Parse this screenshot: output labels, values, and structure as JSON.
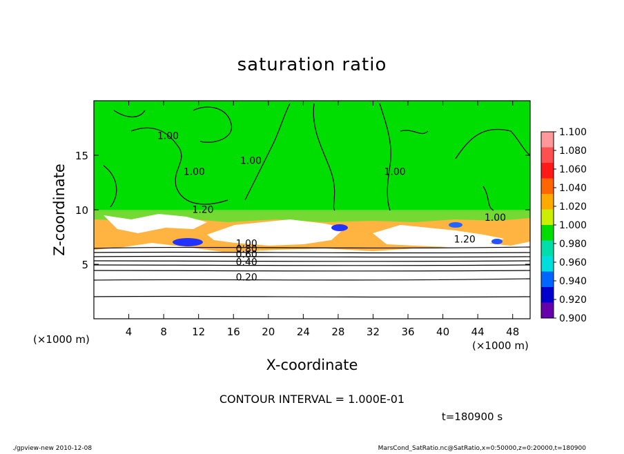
{
  "chart_data": {
    "type": "heatmap",
    "title": "saturation ratio",
    "xlabel": "X-coordinate",
    "ylabel": "Z-coordinate",
    "x_unit_left": "(×1000 m)",
    "x_unit_right": "(×1000 m)",
    "xlim": [
      0,
      50
    ],
    "ylim": [
      0,
      20
    ],
    "xticks": [
      4,
      8,
      12,
      16,
      20,
      24,
      28,
      32,
      36,
      40,
      44,
      48
    ],
    "yticks": [
      5,
      10,
      15
    ],
    "colorbar": {
      "levels": [
        "1.100",
        "1.080",
        "1.060",
        "1.040",
        "1.020",
        "1.000",
        "0.980",
        "0.960",
        "0.940",
        "0.920",
        "0.900"
      ],
      "colors": [
        "#ff9999",
        "#ff5050",
        "#ff1a1a",
        "#ff6600",
        "#ffaa00",
        "#ccee00",
        "#00dd00",
        "#00ddaa",
        "#00dddd",
        "#0066ff",
        "#0000cc",
        "#6600aa"
      ]
    },
    "contour_labels": [
      {
        "text": "1.00",
        "x": 8.5,
        "z": 16.5
      },
      {
        "text": "1.00",
        "x": 11.5,
        "z": 13.2
      },
      {
        "text": "1.00",
        "x": 18.0,
        "z": 14.2
      },
      {
        "text": "1.00",
        "x": 34.5,
        "z": 13.2
      },
      {
        "text": "1.00",
        "x": 46.0,
        "z": 9.0
      },
      {
        "text": "1.20",
        "x": 12.5,
        "z": 9.7
      },
      {
        "text": "1.20",
        "x": 42.5,
        "z": 7.0
      },
      {
        "text": "1.00",
        "x": 17.5,
        "z": 6.6
      },
      {
        "text": "0.80",
        "x": 17.5,
        "z": 6.1
      },
      {
        "text": "0.60",
        "x": 17.5,
        "z": 5.6
      },
      {
        "text": "0.40",
        "x": 17.5,
        "z": 4.9
      },
      {
        "text": "0.20",
        "x": 17.5,
        "z": 3.5
      }
    ],
    "contour_interval": "CONTOUR INTERVAL = 1.000E-01",
    "time": "t=180900 s"
  },
  "footer": {
    "left": "./gpview-new   2010-12-08",
    "right": "MarsCond_SatRatio.nc@SatRatio,x=0:50000,z=0:20000,t=180900"
  },
  "colors": {
    "saturated_green": "#00dd00",
    "plot_border": "#000000",
    "background": "#ffffff"
  }
}
